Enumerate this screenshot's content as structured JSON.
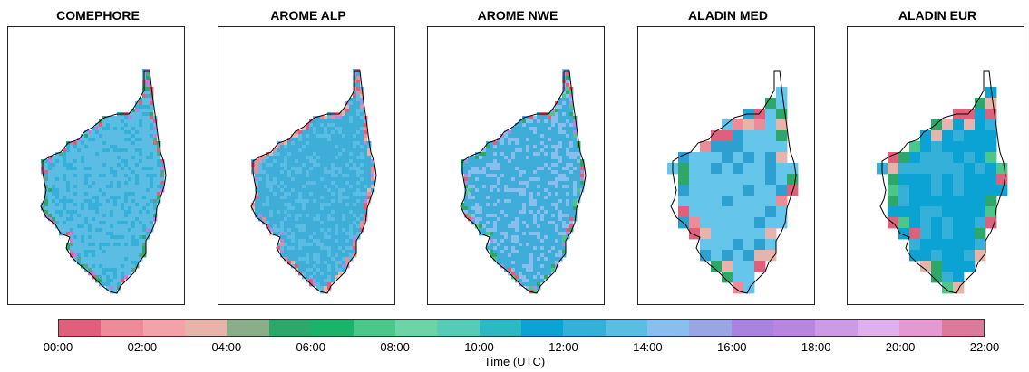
{
  "panels": [
    {
      "title": "COMEPHORE",
      "dominant": "#5bbde4",
      "secondary": "#35b0d8",
      "edge": [
        "#e0607c",
        "#c07ee0",
        "#5aa08a",
        "#2ea86a"
      ]
    },
    {
      "title": "AROME ALP",
      "dominant": "#3eaed8",
      "secondary": "#5bbde4",
      "edge": [
        "#e0607c",
        "#ec8c98",
        "#a88fe0",
        "#e6b4aa"
      ]
    },
    {
      "title": "AROME NWE",
      "dominant": "#3eaed8",
      "secondary": "#89bfee",
      "edge": [
        "#2ea86a",
        "#4cc78a",
        "#e0607c",
        "#a88fe0"
      ]
    },
    {
      "title": "ALADIN MED",
      "dominant": "#66c5ea",
      "secondary": "#2ea0d0",
      "edge": [
        "#ec8c98",
        "#e6b4aa",
        "#2ea86a",
        "#e0607c"
      ]
    },
    {
      "title": "ALADIN EUR",
      "dominant": "#0aa3d4",
      "secondary": "#35b0d8",
      "edge": [
        "#4cc78a",
        "#2ea86a",
        "#e6b4aa",
        "#e0607c"
      ]
    }
  ],
  "colorbar": {
    "colors": [
      "#e0607c",
      "#ec8c98",
      "#f2a2a8",
      "#e6b4aa",
      "#8aae8a",
      "#2ea86a",
      "#1db26a",
      "#4cc78a",
      "#6ed4a8",
      "#55cbb8",
      "#2eb8c4",
      "#0aa3d4",
      "#35b0d8",
      "#5bbde4",
      "#89bfee",
      "#9aa6e4",
      "#a884e0",
      "#b886e0",
      "#cc9ae6",
      "#e0b0ec",
      "#e49ad0",
      "#dc7a9c"
    ],
    "tick_labels": [
      "00:00",
      "02:00",
      "04:00",
      "06:00",
      "08:00",
      "10:00",
      "12:00",
      "14:00",
      "16:00",
      "18:00",
      "20:00",
      "22:00"
    ],
    "label": "Time (UTC)"
  }
}
